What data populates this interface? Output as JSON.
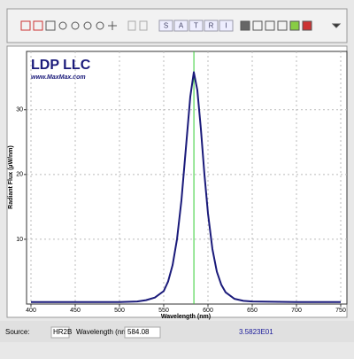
{
  "toolbar": {
    "mode_buttons": [
      "S",
      "A",
      "T",
      "R",
      "I"
    ]
  },
  "chart_data": {
    "type": "line",
    "logo": "LDP LLC",
    "logo_url": "www.MaxMax.com",
    "x_label": "Wavelength (nm)",
    "y_label": "Radiant Flux (µW/nm)",
    "x": [
      400,
      450,
      500,
      520,
      530,
      540,
      550,
      555,
      560,
      565,
      570,
      575,
      580,
      584,
      588,
      592,
      596,
      600,
      605,
      610,
      615,
      620,
      630,
      640,
      650,
      700,
      750
    ],
    "series": [
      {
        "color": "#1a1a7a",
        "values": [
          0.3,
          0.3,
          0.3,
          0.4,
          0.6,
          1.0,
          2.0,
          3.5,
          6,
          10,
          16,
          24,
          32,
          35.8,
          33,
          27,
          20,
          14,
          8.5,
          5,
          3,
          1.8,
          0.8,
          0.5,
          0.4,
          0.3,
          0.3
        ]
      }
    ],
    "xlim": [
      395,
      757
    ],
    "ylim": [
      0,
      39
    ],
    "xticks": [
      400,
      450,
      500,
      550,
      600,
      650,
      700,
      750
    ],
    "yticks": [
      10,
      20,
      30
    ],
    "grid": true,
    "cursor_x": 584.08,
    "cursor_color": "#33cc33"
  },
  "status": {
    "source_label": "Source:",
    "source": "HR2B",
    "wavelength_label": "Wavelength (nm):",
    "reading": "3.5823E01"
  }
}
